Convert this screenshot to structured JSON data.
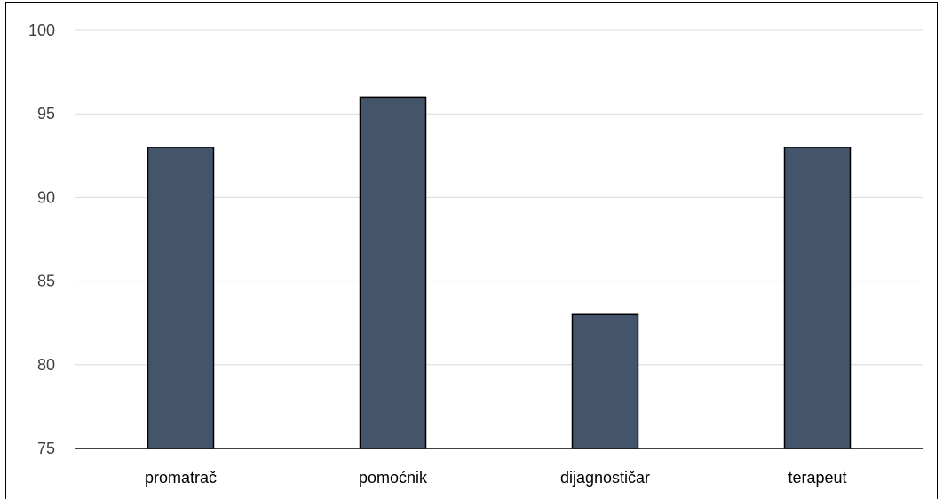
{
  "chart_data": {
    "type": "bar",
    "title": "",
    "xlabel": "",
    "ylabel": "",
    "categories": [
      "promatrač",
      "pomoćnik",
      "dijagnostičar",
      "terapeut"
    ],
    "values": [
      93,
      96,
      83,
      93
    ],
    "ylim": [
      75,
      100
    ],
    "yticks": [
      75,
      80,
      85,
      90,
      95,
      100
    ],
    "grid": true,
    "legend": "none",
    "bar_color": "#44546a"
  }
}
